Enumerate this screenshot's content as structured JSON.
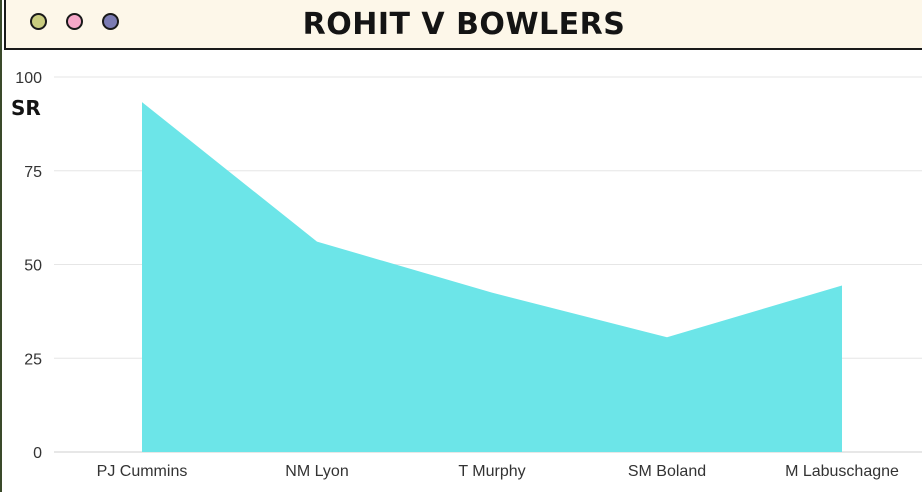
{
  "window": {
    "title": "ROHIT V BOWLERS",
    "controls": [
      {
        "name": "green-dot",
        "color": "#c9cc7f"
      },
      {
        "name": "pink-dot",
        "color": "#f6a8c9"
      },
      {
        "name": "purple-dot",
        "color": "#7b7bb3"
      }
    ]
  },
  "chart_data": {
    "type": "area",
    "title": "ROHIT V BOWLERS",
    "xlabel": "",
    "ylabel": "SR",
    "categories": [
      "PJ Cummins",
      "NM Lyon",
      "T Murphy",
      "SM Boland",
      "M Labuschagne"
    ],
    "values": [
      93.3,
      56.1,
      42.5,
      30.6,
      44.4
    ],
    "ylim": [
      0,
      100
    ],
    "yticks": [
      0,
      25,
      50,
      75,
      100
    ],
    "grid": true,
    "fill_color": "#6ce5e8"
  }
}
